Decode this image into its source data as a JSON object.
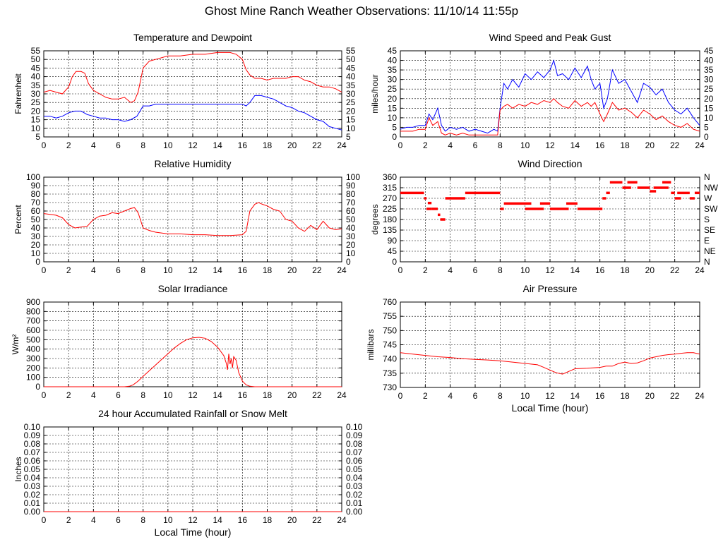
{
  "page_title": "Ghost Mine Ranch Weather Observations: 11/10/14 11:55p",
  "colors": {
    "red": "#ff0000",
    "blue": "#0000ff",
    "grid": "#000000",
    "background": "#ffffff"
  },
  "chart_data": [
    {
      "id": "temperature",
      "type": "line",
      "title": "Temperature and Dewpoint",
      "xlabel": "",
      "ylabel": "Fahrenheit",
      "xlim": [
        0,
        24
      ],
      "ylim": [
        5,
        55
      ],
      "x_ticks": [
        "0",
        "2",
        "4",
        "6",
        "8",
        "10",
        "12",
        "14",
        "16",
        "18",
        "20",
        "22",
        "24"
      ],
      "y_ticks": [
        "5",
        "10",
        "15",
        "20",
        "25",
        "30",
        "35",
        "40",
        "45",
        "50",
        "55"
      ],
      "right_ticks": [
        "5",
        "10",
        "15",
        "20",
        "25",
        "30",
        "35",
        "40",
        "45",
        "50",
        "55"
      ],
      "grid": true,
      "series": [
        {
          "color": "#ff0000",
          "x": [
            0,
            0.5,
            1,
            1.5,
            2,
            2.3,
            2.6,
            3,
            3.3,
            3.6,
            4,
            4.5,
            5,
            5.5,
            6,
            6.5,
            7,
            7.3,
            7.6,
            8,
            8.5,
            9,
            10,
            11,
            12,
            13,
            14,
            15,
            15.5,
            16,
            16.3,
            16.6,
            17,
            17.5,
            18,
            18.5,
            19,
            19.5,
            20,
            20.5,
            21,
            21.5,
            22,
            22.5,
            23,
            23.5,
            24
          ],
          "y": [
            31,
            32,
            31,
            30,
            34,
            40,
            43,
            43,
            42,
            36,
            32,
            30,
            28,
            27,
            27,
            28,
            25,
            26,
            31,
            45,
            49,
            50,
            52,
            52,
            53,
            53,
            54,
            54,
            53,
            50,
            44,
            41,
            39,
            39,
            38,
            39,
            39,
            39,
            40,
            40,
            38,
            37,
            35,
            34,
            34,
            33,
            31
          ]
        },
        {
          "color": "#0000ff",
          "x": [
            0,
            0.5,
            1,
            1.5,
            2,
            2.5,
            3,
            3.5,
            4,
            4.5,
            5,
            5.5,
            6,
            6.5,
            7,
            7.5,
            8,
            8.5,
            9,
            10,
            11,
            12,
            13,
            14,
            15,
            16,
            16.3,
            16.6,
            17,
            17.5,
            18,
            18.5,
            19,
            19.5,
            20,
            20.5,
            21,
            21.5,
            22,
            22.5,
            23,
            23.5,
            24
          ],
          "y": [
            17,
            17,
            16,
            17,
            19,
            20,
            20,
            18,
            17,
            16,
            16,
            15,
            15,
            14,
            15,
            17,
            23,
            23,
            24,
            24,
            24,
            24,
            24,
            24,
            24,
            24,
            23,
            25,
            29,
            29,
            28,
            27,
            25,
            23,
            22,
            20,
            19,
            17,
            15,
            14,
            11,
            10,
            9
          ]
        }
      ]
    },
    {
      "id": "wind",
      "type": "line",
      "title": "Wind Speed and Peak Gust",
      "xlabel": "",
      "ylabel": "miles/hour",
      "xlim": [
        0,
        24
      ],
      "ylim": [
        0,
        45
      ],
      "x_ticks": [
        "0",
        "2",
        "4",
        "6",
        "8",
        "10",
        "12",
        "14",
        "16",
        "18",
        "20",
        "22",
        "24"
      ],
      "y_ticks": [
        "0",
        "5",
        "10",
        "15",
        "20",
        "25",
        "30",
        "35",
        "40",
        "45"
      ],
      "right_ticks": [
        "0",
        "5",
        "10",
        "15",
        "20",
        "25",
        "30",
        "35",
        "40",
        "45"
      ],
      "grid": true,
      "series": [
        {
          "color": "#0000ff",
          "x": [
            0,
            0.5,
            1,
            1.5,
            2,
            2.3,
            2.6,
            3,
            3.3,
            3.6,
            4,
            4.5,
            5,
            5.5,
            6,
            6.5,
            7,
            7.5,
            7.8,
            8,
            8.3,
            8.6,
            9,
            9.5,
            10,
            10.5,
            11,
            11.5,
            12,
            12.3,
            12.6,
            13,
            13.5,
            14,
            14.5,
            15,
            15.3,
            15.6,
            16,
            16.3,
            16.6,
            17,
            17.5,
            18,
            18.5,
            19,
            19.5,
            20,
            20.5,
            21,
            21.5,
            22,
            22.5,
            23,
            23.5,
            24
          ],
          "y": [
            4,
            5,
            5,
            6,
            6,
            12,
            9,
            15,
            6,
            3,
            5,
            4,
            5,
            3,
            4,
            3,
            2,
            4,
            3,
            15,
            28,
            25,
            30,
            26,
            33,
            30,
            34,
            31,
            35,
            40,
            32,
            33,
            30,
            36,
            31,
            37,
            30,
            25,
            28,
            15,
            20,
            35,
            28,
            30,
            24,
            18,
            28,
            26,
            22,
            25,
            18,
            14,
            12,
            15,
            10,
            6
          ]
        },
        {
          "color": "#ff0000",
          "x": [
            0,
            0.5,
            1,
            1.5,
            2,
            2.3,
            2.6,
            3,
            3.3,
            3.6,
            4,
            4.5,
            5,
            5.5,
            6,
            6.5,
            7,
            7.5,
            7.8,
            8,
            8.3,
            8.6,
            9,
            9.5,
            10,
            10.5,
            11,
            11.5,
            12,
            12.3,
            12.6,
            13,
            13.5,
            14,
            14.5,
            15,
            15.3,
            15.6,
            16,
            16.3,
            16.6,
            17,
            17.5,
            18,
            18.5,
            19,
            19.5,
            20,
            20.5,
            21,
            21.5,
            22,
            22.5,
            23,
            23.5,
            24
          ],
          "y": [
            3,
            3,
            3,
            4,
            4,
            10,
            6,
            8,
            2,
            1,
            2,
            1,
            2,
            1,
            1,
            1,
            1,
            1,
            1,
            14,
            16,
            17,
            15,
            17,
            16,
            18,
            17,
            19,
            18,
            20,
            18,
            16,
            15,
            19,
            16,
            18,
            16,
            18,
            12,
            8,
            12,
            18,
            14,
            15,
            13,
            10,
            14,
            12,
            9,
            11,
            8,
            6,
            5,
            7,
            4,
            3
          ]
        }
      ]
    },
    {
      "id": "humidity",
      "type": "line",
      "title": "Relative Humidity",
      "xlabel": "",
      "ylabel": "Percent",
      "xlim": [
        0,
        24
      ],
      "ylim": [
        0,
        100
      ],
      "x_ticks": [
        "0",
        "2",
        "4",
        "6",
        "8",
        "10",
        "12",
        "14",
        "16",
        "18",
        "20",
        "22",
        "24"
      ],
      "y_ticks": [
        "0",
        "10",
        "20",
        "30",
        "40",
        "50",
        "60",
        "70",
        "80",
        "90",
        "100"
      ],
      "right_ticks": [
        "0",
        "10",
        "20",
        "30",
        "40",
        "50",
        "60",
        "70",
        "80",
        "90",
        "100"
      ],
      "grid": true,
      "series": [
        {
          "color": "#ff0000",
          "x": [
            0,
            0.5,
            1,
            1.5,
            2,
            2.5,
            3,
            3.5,
            4,
            4.5,
            5,
            5.5,
            6,
            6.5,
            7,
            7.3,
            7.6,
            8,
            8.5,
            9,
            10,
            11,
            12,
            13,
            14,
            15,
            16,
            16.3,
            16.6,
            17,
            17.3,
            17.6,
            18,
            18.5,
            19,
            19.5,
            20,
            20.5,
            21,
            21.5,
            22,
            22.5,
            23,
            23.5,
            24
          ],
          "y": [
            57,
            56,
            55,
            52,
            44,
            40,
            41,
            42,
            50,
            54,
            55,
            58,
            57,
            60,
            63,
            64,
            58,
            40,
            37,
            35,
            33,
            33,
            32,
            32,
            31,
            31,
            32,
            36,
            60,
            68,
            70,
            68,
            66,
            62,
            60,
            50,
            48,
            40,
            36,
            43,
            38,
            48,
            40,
            38,
            39
          ]
        }
      ]
    },
    {
      "id": "direction",
      "type": "scatter",
      "title": "Wind Direction",
      "xlabel": "",
      "ylabel": "degrees",
      "xlim": [
        0,
        24
      ],
      "ylim": [
        0,
        360
      ],
      "x_ticks": [
        "0",
        "2",
        "4",
        "6",
        "8",
        "10",
        "12",
        "14",
        "16",
        "18",
        "20",
        "22",
        "24"
      ],
      "y_ticks": [
        "0",
        "45",
        "90",
        "135",
        "180",
        "225",
        "270",
        "315",
        "360"
      ],
      "right_ticks": [
        "N",
        "NE",
        "E",
        "SE",
        "S",
        "SW",
        "W",
        "NW",
        "N"
      ],
      "grid": true,
      "series": [
        {
          "color": "#ff0000",
          "segments": [
            [
              0,
              1.9,
              293
            ],
            [
              1.9,
              2.1,
              270
            ],
            [
              2.1,
              2.5,
              225
            ],
            [
              2.2,
              2.5,
              250
            ],
            [
              2.5,
              3.0,
              225
            ],
            [
              3.0,
              3.2,
              200
            ],
            [
              3.2,
              3.6,
              180
            ],
            [
              3.6,
              5.2,
              270
            ],
            [
              5.2,
              8.0,
              293
            ],
            [
              8.0,
              8.3,
              225
            ],
            [
              8.3,
              10.5,
              248
            ],
            [
              10.0,
              11.5,
              225
            ],
            [
              11.2,
              12.0,
              248
            ],
            [
              12.0,
              13.5,
              225
            ],
            [
              13.3,
              14.2,
              248
            ],
            [
              14.2,
              16.2,
              225
            ],
            [
              16.2,
              16.5,
              270
            ],
            [
              16.5,
              16.8,
              293
            ],
            [
              16.8,
              17.8,
              338
            ],
            [
              17.8,
              18.5,
              315
            ],
            [
              18.2,
              19.0,
              338
            ],
            [
              19.0,
              20.0,
              315
            ],
            [
              20.0,
              20.5,
              300
            ],
            [
              20.3,
              21.5,
              315
            ],
            [
              21.0,
              21.7,
              338
            ],
            [
              21.7,
              22.0,
              293
            ],
            [
              22.0,
              22.5,
              270
            ],
            [
              22.2,
              23.2,
              293
            ],
            [
              23.2,
              23.6,
              270
            ],
            [
              23.6,
              24.0,
              293
            ]
          ]
        }
      ]
    },
    {
      "id": "solar",
      "type": "line",
      "title": "Solar Irradiance",
      "xlabel": "",
      "ylabel": "W/m²",
      "xlim": [
        0,
        24
      ],
      "ylim": [
        0,
        900
      ],
      "x_ticks": [
        "0",
        "2",
        "4",
        "6",
        "8",
        "10",
        "12",
        "14",
        "16",
        "18",
        "20",
        "22",
        "24"
      ],
      "y_ticks": [
        "0",
        "100",
        "200",
        "300",
        "400",
        "500",
        "600",
        "700",
        "800",
        "900"
      ],
      "grid": true,
      "series": [
        {
          "color": "#ff0000",
          "x": [
            0,
            6.5,
            6.9,
            7.2,
            7.6,
            8,
            8.5,
            9,
            9.5,
            10,
            10.5,
            11,
            11.5,
            12,
            12.5,
            13,
            13.5,
            14,
            14.5,
            14.7,
            14.8,
            14.9,
            15.0,
            15.1,
            15.2,
            15.3,
            15.5,
            15.7,
            16,
            16.3,
            16.6,
            17,
            24
          ],
          "y": [
            0,
            0,
            5,
            20,
            60,
            110,
            170,
            230,
            290,
            350,
            410,
            460,
            500,
            520,
            525,
            515,
            480,
            420,
            330,
            250,
            180,
            350,
            240,
            300,
            200,
            320,
            280,
            150,
            60,
            20,
            5,
            0,
            0
          ]
        }
      ]
    },
    {
      "id": "pressure",
      "type": "line",
      "title": "Air Pressure",
      "xlabel": "Local Time (hour)",
      "ylabel": "millibars",
      "xlim": [
        0,
        24
      ],
      "ylim": [
        730,
        762
      ],
      "x_ticks": [
        "0",
        "2",
        "4",
        "6",
        "8",
        "10",
        "12",
        "14",
        "16",
        "18",
        "20",
        "22",
        "24"
      ],
      "y_ticks": [
        "730",
        "735",
        "740",
        "745",
        "750",
        "755",
        "760"
      ],
      "grid": true,
      "series": [
        {
          "color": "#ff0000",
          "x": [
            0,
            1,
            2,
            3,
            4,
            5,
            6,
            7,
            8,
            9,
            10,
            11,
            11.5,
            12,
            12.5,
            13,
            13.5,
            14,
            15,
            16,
            16.5,
            17,
            17.5,
            18,
            18.5,
            19,
            19.5,
            20,
            20.5,
            21,
            21.5,
            22,
            22.5,
            23,
            23.5,
            24
          ],
          "y": [
            743,
            742.5,
            742,
            741.5,
            741.2,
            740.8,
            740.5,
            740.3,
            740,
            739.5,
            739,
            738.5,
            737.5,
            736.5,
            735.5,
            735,
            736,
            737,
            737.2,
            737.5,
            738,
            738,
            739,
            739.5,
            739,
            739.2,
            740,
            741,
            741.5,
            742,
            742.3,
            742.5,
            742.8,
            743,
            743,
            742.5
          ]
        }
      ]
    },
    {
      "id": "rain",
      "type": "line",
      "title": "24 hour Accumulated Rainfall or Snow Melt",
      "xlabel": "Local Time (hour)",
      "ylabel": "Inches",
      "xlim": [
        0,
        24
      ],
      "ylim": [
        0,
        0.1
      ],
      "x_ticks": [
        "0",
        "2",
        "4",
        "6",
        "8",
        "10",
        "12",
        "14",
        "16",
        "18",
        "20",
        "22",
        "24"
      ],
      "y_ticks": [
        "0.00",
        "0.01",
        "0.02",
        "0.03",
        "0.04",
        "0.05",
        "0.06",
        "0.07",
        "0.08",
        "0.09",
        "0.10"
      ],
      "right_ticks": [
        "0.00",
        "0.01",
        "0.02",
        "0.03",
        "0.04",
        "0.05",
        "0.06",
        "0.07",
        "0.08",
        "0.09",
        "0.10"
      ],
      "grid": true,
      "series": [
        {
          "color": "#ff0000",
          "x": [
            0,
            24
          ],
          "y": [
            0,
            0
          ]
        }
      ]
    }
  ]
}
